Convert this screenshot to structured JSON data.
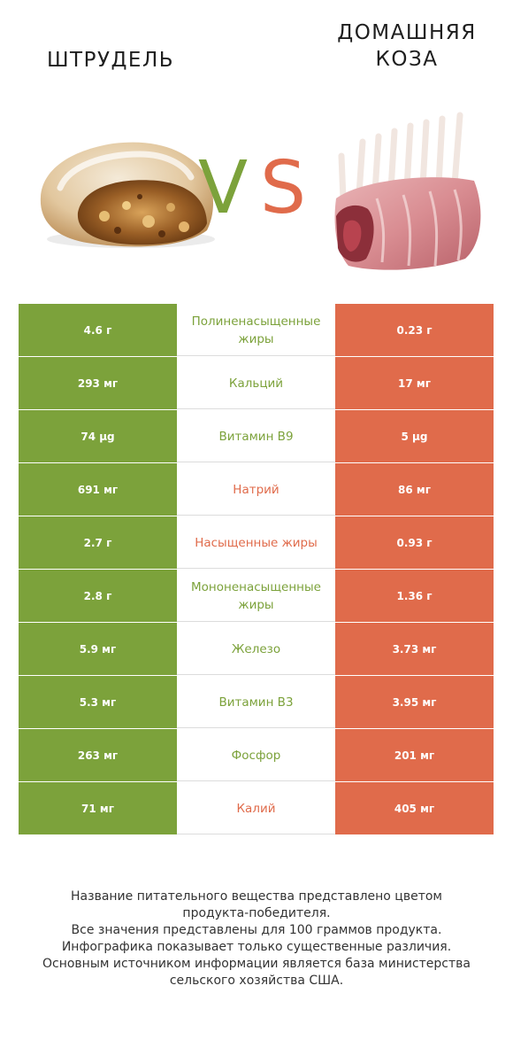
{
  "header": {
    "left_title": "ШТРУДЕЛЬ",
    "right_title_line1": "ДОМАШНЯЯ",
    "right_title_line2": "КОЗА",
    "vs_v": "V",
    "vs_s": "S"
  },
  "colors": {
    "left_accent": "#7ca23b",
    "right_accent": "#e06b4b"
  },
  "images": {
    "left": "strudel-image",
    "right": "goat-rack-image"
  },
  "chart_data": {
    "type": "table",
    "columns": [
      "ШТРУДЕЛЬ",
      "ДОМАШНЯЯ КОЗА"
    ],
    "rows": [
      {
        "nutrient": "Полиненасыщенные жиры",
        "left": "4.6 г",
        "right": "0.23 г",
        "winner": "left"
      },
      {
        "nutrient": "Кальций",
        "left": "293 мг",
        "right": "17 мг",
        "winner": "left"
      },
      {
        "nutrient": "Витамин B9",
        "left": "74 µg",
        "right": "5 µg",
        "winner": "left"
      },
      {
        "nutrient": "Натрий",
        "left": "691 мг",
        "right": "86 мг",
        "winner": "right"
      },
      {
        "nutrient": "Насыщенные жиры",
        "left": "2.7 г",
        "right": "0.93 г",
        "winner": "right"
      },
      {
        "nutrient": "Мононенасыщенные жиры",
        "left": "2.8 г",
        "right": "1.36 г",
        "winner": "left"
      },
      {
        "nutrient": "Железо",
        "left": "5.9 мг",
        "right": "3.73 мг",
        "winner": "left"
      },
      {
        "nutrient": "Витамин B3",
        "left": "5.3 мг",
        "right": "3.95 мг",
        "winner": "left"
      },
      {
        "nutrient": "Фосфор",
        "left": "263 мг",
        "right": "201 мг",
        "winner": "left"
      },
      {
        "nutrient": "Калий",
        "left": "71 мг",
        "right": "405 мг",
        "winner": "right"
      }
    ]
  },
  "footer": {
    "line1": "Название питательного вещества представлено цветом",
    "line2": "продукта-победителя.",
    "line3": "Все значения представлены для 100 граммов продукта.",
    "line4": "Инфографика показывает только существенные различия.",
    "line5": "Основным источником информации является база министерства",
    "line6": "сельского хозяйства США."
  }
}
